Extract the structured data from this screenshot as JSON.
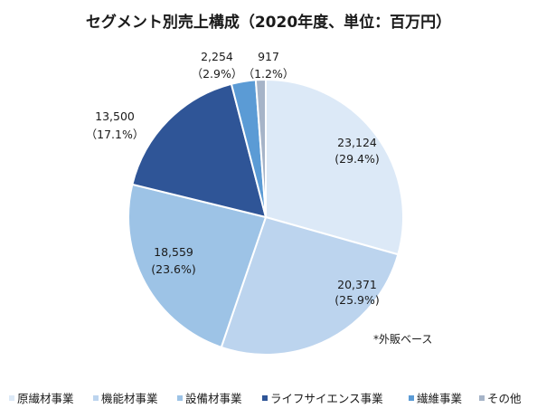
{
  "chart_data": {
    "type": "pie",
    "title": "セグメント別売上構成（2020年度、単位：百万円）",
    "categories": [
      "原繊材事業",
      "機能材事業",
      "設備材事業",
      "ライフサイエンス事業",
      "繊維事業",
      "その他"
    ],
    "values": [
      23124,
      20371,
      18559,
      13500,
      2254,
      917
    ],
    "value_labels": [
      "23,124",
      "20,371",
      "18,559",
      "13,500",
      "2,254",
      "917"
    ],
    "percent_labels": [
      "(29.4%)",
      "(25.9%)",
      "(23.6%)",
      "（17.1%）",
      "（2.9%）",
      "（1.2%）"
    ],
    "colors": [
      "#dce9f7",
      "#bcd4ee",
      "#9dc3e6",
      "#2f5597",
      "#5b9bd5",
      "#a6b4c8"
    ],
    "legend_position": "bottom",
    "start_angle_deg": 0,
    "direction": "clockwise"
  },
  "note": "*外販ベース"
}
